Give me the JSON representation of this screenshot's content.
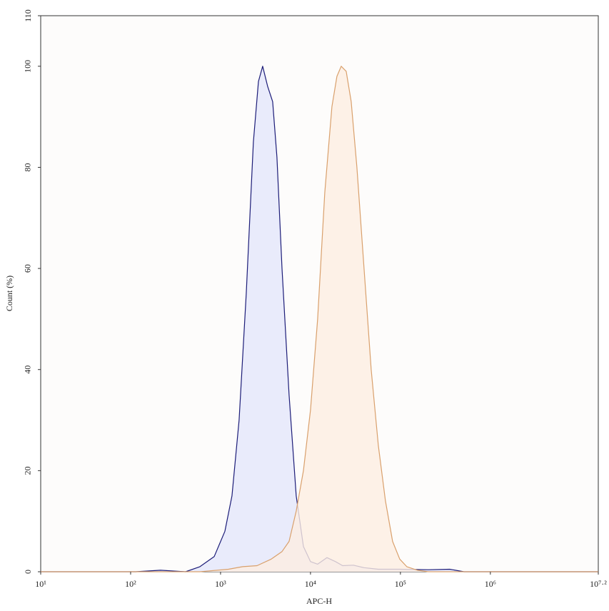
{
  "chart_data": {
    "type": "area",
    "xlabel": "APC-H",
    "ylabel": "Count (%)",
    "xscale": "log",
    "xlim": [
      10,
      15848932
    ],
    "ylim": [
      0,
      110
    ],
    "xticks": [
      {
        "value": 10,
        "label": "10¹"
      },
      {
        "value": 100,
        "label": "10²"
      },
      {
        "value": 1000,
        "label": "10³"
      },
      {
        "value": 10000,
        "label": "10⁴"
      },
      {
        "value": 100000,
        "label": "10⁵"
      },
      {
        "value": 1000000,
        "label": "10⁶"
      },
      {
        "value": 15848932,
        "label": "10⁷·²"
      }
    ],
    "yticks": [
      0,
      20,
      40,
      60,
      80,
      100,
      110
    ],
    "grid": false,
    "series": [
      {
        "color": "#1c1c78",
        "fill": "#e4e6fb",
        "x": [
          10,
          114,
          215,
          408,
          589,
          849,
          1117,
          1340,
          1607,
          1931,
          2317,
          2636,
          2939,
          3342,
          3793,
          4236,
          4819,
          5781,
          6935,
          8337,
          10000,
          11995,
          15235,
          18967,
          22758,
          29923,
          39355,
          56752,
          98175,
          204174,
          353183,
          508159,
          1267659,
          15848932
        ],
        "values": [
          0,
          0,
          0.3,
          0,
          1,
          3,
          8,
          15,
          30,
          55,
          85,
          97,
          100,
          96,
          93,
          82,
          60,
          35,
          15,
          5,
          2,
          1.5,
          2.8,
          2,
          1.2,
          1.3,
          0.8,
          0.5,
          0.5,
          0.4,
          0.5,
          0,
          0,
          0
        ]
      },
      {
        "color": "#d9a06c",
        "fill": "#fdeee2",
        "x": [
          10,
          589,
          1222,
          1762,
          2541,
          3656,
          4819,
          5781,
          6935,
          8337,
          10000,
          11995,
          14420,
          17298,
          19680,
          21930,
          24930,
          28320,
          32810,
          39355,
          47300,
          56752,
          68100,
          81800,
          98175,
          117800,
          154900,
          204174,
          15848932
        ],
        "values": [
          0,
          0,
          0.5,
          1,
          1.2,
          2.5,
          4,
          6,
          12,
          20,
          32,
          50,
          75,
          92,
          98,
          100,
          99,
          93,
          80,
          60,
          40,
          25,
          14,
          6,
          2.5,
          1,
          0.3,
          0,
          0
        ]
      }
    ]
  }
}
